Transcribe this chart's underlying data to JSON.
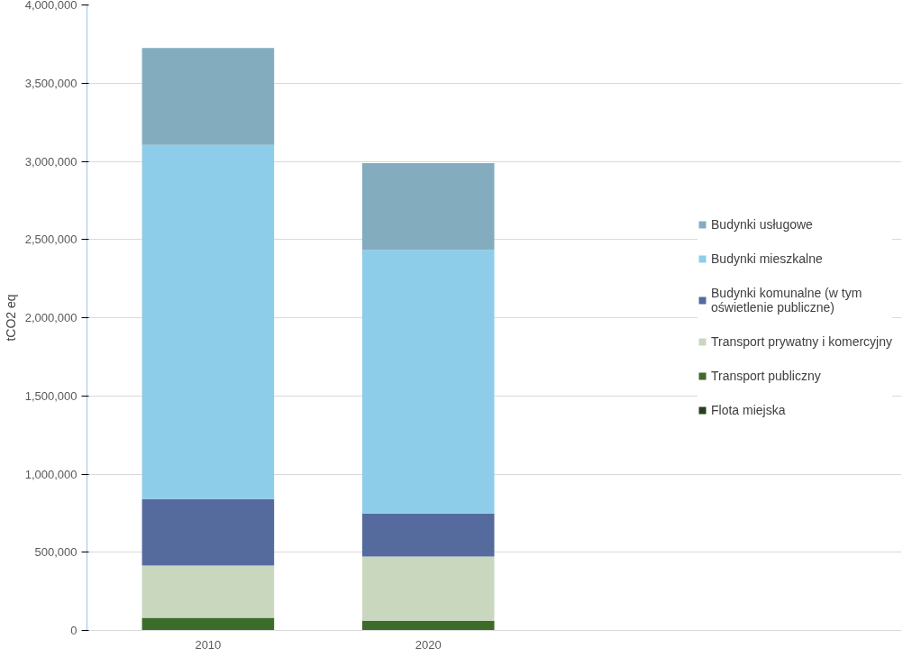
{
  "chart_data": {
    "type": "bar",
    "stacked": true,
    "ylabel": "tCO2 eq",
    "categories": [
      "2010",
      "2020"
    ],
    "series": [
      {
        "name": "Flota miejska",
        "color": "#263f1f",
        "values": [
          null,
          null
        ]
      },
      {
        "name": "Transport publiczny",
        "color": "#3d6b2a",
        "values": [
          80000,
          60000
        ]
      },
      {
        "name": "Transport prywatny i komercyjny",
        "color": "#c9d7bf",
        "values": [
          335000,
          413000
        ]
      },
      {
        "name": "Budynki komunalne (w tym oświetlenie publiczne)",
        "color": "#556b9e",
        "values": [
          425000,
          275000
        ]
      },
      {
        "name": "Budynki mieszkalne",
        "color": "#8ecde9",
        "values": [
          2265000,
          1685000
        ]
      },
      {
        "name": "Budynki usługowe",
        "color": "#83adbf",
        "values": [
          620000,
          555000
        ]
      }
    ],
    "ylim": [
      0,
      4000000
    ],
    "yticks": [
      0,
      {
        "value": 500000,
        "label": "500,000"
      },
      {
        "value": 1000000,
        "label": "1,000,000"
      },
      {
        "value": 1500000,
        "label": "1,500,000"
      },
      {
        "value": 2000000,
        "label": "2,000,000"
      },
      {
        "value": 2500000,
        "label": "2,500,000"
      },
      {
        "value": 3000000,
        "label": "3,000,000"
      },
      {
        "value": 3500000,
        "label": "3,500,000"
      },
      {
        "value": 4000000,
        "label": "4,000,000"
      }
    ],
    "grid": "y",
    "legend": "right"
  }
}
